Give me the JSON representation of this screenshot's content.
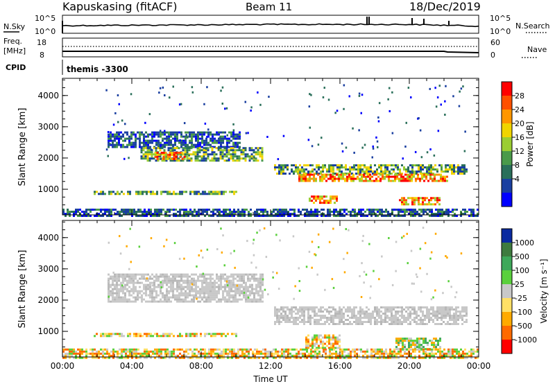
{
  "header": {
    "station": "Kapuskasing (fitACF)",
    "beam": "Beam 11",
    "date": "18/Dec/2019"
  },
  "noise_panel": {
    "left_label": "N.Sky",
    "left_ticks": [
      "10^5",
      "10^0"
    ],
    "right_ticks": [
      "10^5",
      "10^0"
    ],
    "right_label": "N.Search"
  },
  "freq_panel": {
    "left_label_1": "Freq.",
    "left_label_2": "[MHz]",
    "left_ticks": [
      "18",
      "8"
    ],
    "right_ticks": [
      "60",
      "0"
    ],
    "right_label": "Nave"
  },
  "cpid": {
    "label": "CPID",
    "value": "themis -3300"
  },
  "chart_data": [
    {
      "type": "heatmap",
      "panel": "power",
      "ylabel": "Slant Range [km]",
      "y_ticks": [
        1000,
        2000,
        3000,
        4000
      ],
      "ylim": [
        180,
        4550
      ],
      "x_ticks": [
        "00:00",
        "04:00",
        "08:00",
        "12:00",
        "16:00",
        "20:00",
        "00:00"
      ],
      "xlim_hours": [
        0,
        24
      ],
      "colorbar": {
        "label": "Power [dB]",
        "ticks": [
          "28",
          "24",
          "20",
          "16",
          "12",
          "8",
          "4"
        ],
        "colors": [
          "#ff0000",
          "#ff5000",
          "#ff9600",
          "#f0d400",
          "#9acd32",
          "#4a9a4a",
          "#2a6f5a",
          "#1a3fa0",
          "#0000ff"
        ]
      },
      "echo_regions": [
        {
          "t_start": 2.6,
          "t_end": 10.2,
          "r_low": 2350,
          "r_high": 2850,
          "level": "low"
        },
        {
          "t_start": 4.5,
          "t_end": 11.5,
          "r_low": 1950,
          "r_high": 2350,
          "level": "mid"
        },
        {
          "t_start": 5.3,
          "t_end": 7.0,
          "r_low": 2000,
          "r_high": 2200,
          "level": "high"
        },
        {
          "t_start": 1.8,
          "t_end": 10.0,
          "r_low": 850,
          "r_high": 950,
          "level": "mid"
        },
        {
          "t_start": 12.2,
          "t_end": 23.3,
          "r_low": 1500,
          "r_high": 1800,
          "level": "mid"
        },
        {
          "t_start": 13.6,
          "t_end": 22.2,
          "r_low": 1250,
          "r_high": 1500,
          "level": "high"
        },
        {
          "t_start": 14.2,
          "t_end": 15.8,
          "r_low": 550,
          "r_high": 800,
          "level": "high"
        },
        {
          "t_start": 19.4,
          "t_end": 21.8,
          "r_low": 550,
          "r_high": 750,
          "level": "high"
        },
        {
          "t_start": 0.0,
          "t_end": 24.0,
          "r_low": 180,
          "r_high": 380,
          "level": "low"
        }
      ]
    },
    {
      "type": "heatmap",
      "panel": "velocity",
      "ylabel": "Slant Range [km]",
      "xlabel": "Time UT",
      "y_ticks": [
        1000,
        2000,
        3000,
        4000
      ],
      "ylim": [
        180,
        4550
      ],
      "x_ticks": [
        "00:00",
        "04:00",
        "08:00",
        "12:00",
        "16:00",
        "20:00",
        "00:00"
      ],
      "xlim_hours": [
        0,
        24
      ],
      "colorbar": {
        "label": "Velocity [m s⁻¹]",
        "ticks": [
          "1000",
          "500",
          "100",
          "25",
          "-25",
          "-100",
          "-500",
          "-1000"
        ],
        "colors": [
          "#0a2aa0",
          "#3e7b3e",
          "#3ea85a",
          "#5ad03c",
          "#c8c8c8",
          "#ffe066",
          "#ffaa00",
          "#ff6a00",
          "#ff0000"
        ]
      },
      "echo_regions": [
        {
          "t_start": 2.6,
          "t_end": 11.6,
          "r_low": 1950,
          "r_high": 2850,
          "level": "ground"
        },
        {
          "t_start": 12.2,
          "t_end": 23.3,
          "r_low": 1250,
          "r_high": 1800,
          "level": "ground"
        },
        {
          "t_start": 1.8,
          "t_end": 10.0,
          "r_low": 850,
          "r_high": 950,
          "level": "neg"
        },
        {
          "t_start": 14.0,
          "t_end": 16.0,
          "r_low": 450,
          "r_high": 900,
          "level": "neg"
        },
        {
          "t_start": 19.2,
          "t_end": 21.8,
          "r_low": 450,
          "r_high": 800,
          "level": "pos"
        },
        {
          "t_start": 0.0,
          "t_end": 24.0,
          "r_low": 180,
          "r_high": 450,
          "level": "neg"
        }
      ]
    }
  ]
}
